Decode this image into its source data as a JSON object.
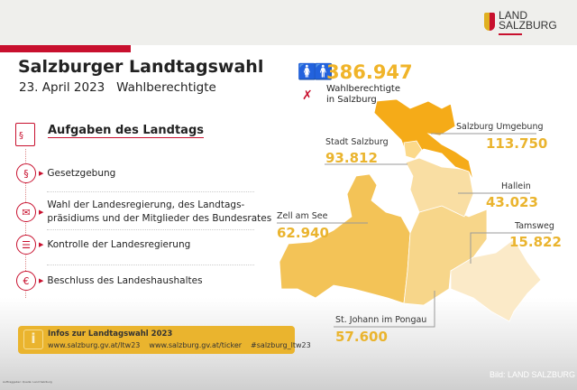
{
  "header": {
    "logo_line1": "LAND",
    "logo_line2": "SALZBURG"
  },
  "title": "Salzburger Landtagswahl",
  "subtitle": "23. April 2023   Wahlberechtigte",
  "tasks": {
    "heading": "Aufgaben des Landtags",
    "items": [
      {
        "icon": "paragraph-icon",
        "glyph": "§",
        "line1": "Gesetzgebung",
        "line2": ""
      },
      {
        "icon": "ballot-box-icon",
        "glyph": "✉",
        "line1": "Wahl der Landesregierung, des Landtags-",
        "line2": "präsidiums und der Mitglieder des Bundesrates"
      },
      {
        "icon": "list-icon",
        "glyph": "☰",
        "line1": "Kontrolle der Landesregierung",
        "line2": ""
      },
      {
        "icon": "euro-icon",
        "glyph": "€",
        "line1": "Beschluss des Landeshaushaltes",
        "line2": ""
      }
    ]
  },
  "info": {
    "icon": "i",
    "title": "Infos zur Landtagswahl 2023",
    "links": [
      "www.salzburg.gv.at/ltw23",
      "www.salzburg.gv.at/ticker",
      "#salzburg_ltw23"
    ]
  },
  "total": {
    "value": "386.947",
    "label1": "Wahlberechtigte",
    "label2": "in Salzburg"
  },
  "districts": [
    {
      "name": "Salzburg Umgebung",
      "value": "113.750",
      "color": "#f5ab18"
    },
    {
      "name": "Stadt Salzburg",
      "value": "93.812",
      "color": "#fbd98a"
    },
    {
      "name": "Hallein",
      "value": "43.023",
      "color": "#f9dea3"
    },
    {
      "name": "Zell am See",
      "value": "62.940",
      "color": "#f3c357"
    },
    {
      "name": "Tamsweg",
      "value": "15.822",
      "color": "#fbeac8"
    },
    {
      "name": "St. Johann im Pongau",
      "value": "57.600",
      "color": "#f7d68a"
    }
  ],
  "footer": {
    "credit": "Bild: LAND SALZBURG",
    "source": "Auftraggeber: Quelle: Land Salzburg"
  }
}
